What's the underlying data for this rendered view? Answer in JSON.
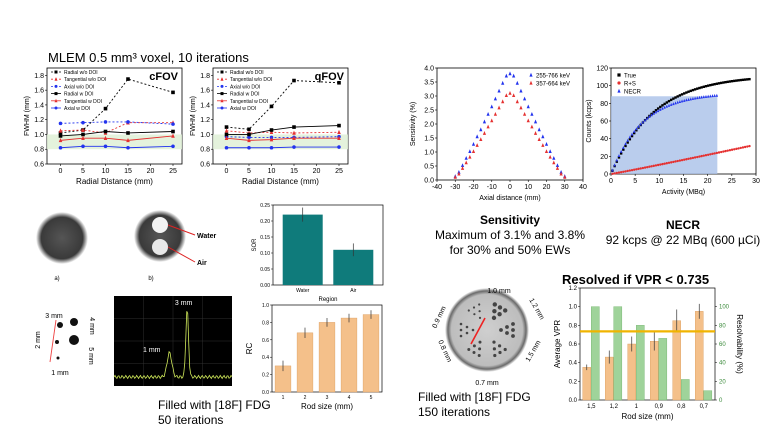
{
  "header_text": "MLEM 0.5 mm³ voxel, 10 iterations",
  "colors": {
    "black": "#000000",
    "red": "#e53030",
    "blue": "#2233ee",
    "orange": "#f4c08a",
    "teal": "#0f7b7b",
    "green": "#9fd39a",
    "gold": "#f0b400",
    "greenband": "#dff0d6",
    "bluebox": "#a9c0e8"
  },
  "fwhm_xlabel": "Radial Distance (mm)",
  "fwhm_ylabel": "FWHM (mm)",
  "fwhm_legend": [
    "Radial w/o DOI",
    "Tangential w/o DOI",
    "Axial w/o DOI",
    "Radial w DOI",
    "Tangential w DOI",
    "Axial w DOI"
  ],
  "image_labels": {
    "a": "a)",
    "b": "b)",
    "water": "Water",
    "air": "Air"
  },
  "sor_xlabel": "Region",
  "sor_ylabel": "SOR",
  "rc_xlabel": "Rod size (mm)",
  "rc_ylabel": "RC",
  "phantom_labels": {
    "l3": "3 mm",
    "l4": "4 mm",
    "l2": "2 mm",
    "l5": "5 mm",
    "l1": "1 mm"
  },
  "profile_labels": {
    "p3": "3 mm",
    "p1": "1 mm"
  },
  "rc_caption_1": "Filled with [18F] FDG",
  "rc_caption_2": "50 iterations",
  "sens_xlabel": "Axial distance (mm)",
  "sens_ylabel": "Sensitivity (%)",
  "sens_caption_title": "Sensitivity",
  "sens_caption_1": "Maximum of 3.1% and 3.8%",
  "sens_caption_2": "for 30% and 50% EWs",
  "necr_xlabel": "Activity (MBq)",
  "necr_ylabel": "Counts (kcps)",
  "necr_caption_title": "NECR",
  "necr_caption_1": "92 kcps @ 22 MBq (600 µCi)",
  "hotrod_labels": {
    "top": "1.0 mm",
    "r1": "1.2 mm",
    "r2": "1.5 mm",
    "l1": "0.9 mm",
    "l2": "0.8 mm",
    "bottom": "0.7 mm"
  },
  "hotrod_caption_1": "Filled with [18F] FDG",
  "hotrod_caption_2": "150 iterations",
  "vpr_title": "Resolved if VPR < 0.735",
  "vpr_xlabel": "Rod size (mm)",
  "vpr_ylabel": "Average VPR",
  "vpr_ylabel2": "Resolvability (%)",
  "chart_data": [
    {
      "id": "cfov",
      "type": "line",
      "title": "cFOV",
      "x": [
        0,
        5,
        10,
        15,
        25
      ],
      "xlim": [
        -3,
        27
      ],
      "ylim": [
        0.6,
        1.9
      ],
      "xticks": [
        0,
        5,
        10,
        15,
        20,
        25
      ],
      "yticks": [
        0.6,
        0.8,
        1.0,
        1.2,
        1.4,
        1.6,
        1.8
      ],
      "series": [
        {
          "name": "Radial w/o DOI",
          "values": [
            1.02,
            1.06,
            1.35,
            1.75,
            1.57
          ]
        },
        {
          "name": "Tangential w/o DOI",
          "values": [
            1.05,
            1.06,
            1.02,
            1.16,
            1.16
          ]
        },
        {
          "name": "Axial w/o DOI",
          "values": [
            1.15,
            1.16,
            1.17,
            1.17,
            1.14
          ]
        },
        {
          "name": "Radial w DOI",
          "values": [
            0.98,
            1.0,
            1.04,
            1.02,
            1.04
          ]
        },
        {
          "name": "Tangential w DOI",
          "values": [
            0.92,
            0.95,
            0.95,
            0.92,
            0.98
          ]
        },
        {
          "name": "Axial w DOI",
          "values": [
            0.82,
            0.84,
            0.84,
            0.82,
            0.84
          ]
        }
      ]
    },
    {
      "id": "qfov",
      "type": "line",
      "title": "qFOV",
      "x": [
        0,
        5,
        10,
        15,
        25
      ],
      "xlim": [
        -3,
        27
      ],
      "ylim": [
        0.6,
        1.9
      ],
      "xticks": [
        0,
        5,
        10,
        15,
        20,
        25
      ],
      "yticks": [
        0.6,
        0.8,
        1.0,
        1.2,
        1.4,
        1.6,
        1.8
      ],
      "series": [
        {
          "name": "Radial w/o DOI",
          "values": [
            1.1,
            1.07,
            1.38,
            1.73,
            1.7
          ]
        },
        {
          "name": "Tangential w/o DOI",
          "values": [
            1.05,
            1.02,
            1.03,
            1.02,
            1.03
          ]
        },
        {
          "name": "Axial w/o DOI",
          "values": [
            0.97,
            0.96,
            0.96,
            0.96,
            0.97
          ]
        },
        {
          "name": "Radial w DOI",
          "values": [
            1.0,
            1.0,
            1.06,
            1.1,
            1.12
          ]
        },
        {
          "name": "Tangential w DOI",
          "values": [
            0.95,
            0.92,
            0.93,
            0.95,
            0.95
          ]
        },
        {
          "name": "Axial w DOI",
          "values": [
            0.82,
            0.82,
            0.82,
            0.83,
            0.83
          ]
        }
      ]
    },
    {
      "id": "sor",
      "type": "bar",
      "categories": [
        "Water",
        "Air"
      ],
      "values": [
        0.22,
        0.11
      ],
      "errors": [
        0.022,
        0.02
      ],
      "ylim": [
        0,
        0.25
      ],
      "yticks": [
        0.0,
        0.05,
        0.1,
        0.15,
        0.2,
        0.25
      ]
    },
    {
      "id": "rc",
      "type": "bar",
      "categories": [
        "1",
        "2",
        "3",
        "4",
        "5"
      ],
      "values": [
        0.3,
        0.68,
        0.8,
        0.85,
        0.89
      ],
      "errors": [
        0.06,
        0.06,
        0.05,
        0.05,
        0.05
      ],
      "ylim": [
        0,
        1.0
      ],
      "yticks": [
        0.0,
        0.2,
        0.4,
        0.6,
        0.8,
        1.0
      ]
    },
    {
      "id": "sensitivity",
      "type": "scatter",
      "xlim": [
        -40,
        40
      ],
      "ylim": [
        0,
        4
      ],
      "xticks": [
        -40,
        -30,
        -20,
        -10,
        0,
        10,
        20,
        30,
        40
      ],
      "yticks": [
        0,
        0.5,
        1.0,
        1.5,
        2.0,
        2.5,
        3.0,
        3.5,
        4.0
      ],
      "series": [
        {
          "name": "255-766 keV",
          "x": [
            -30,
            -28,
            -26,
            -24,
            -22,
            -20,
            -18,
            -16,
            -14,
            -12,
            -10,
            -8,
            -6,
            -4,
            -2,
            0,
            2,
            4,
            6,
            8,
            10,
            12,
            14,
            16,
            18,
            20,
            22,
            24,
            26,
            28,
            30
          ],
          "values": [
            0.13,
            0.28,
            0.52,
            0.78,
            1.02,
            1.28,
            1.55,
            1.8,
            2.08,
            2.35,
            2.62,
            2.9,
            3.18,
            3.46,
            3.72,
            3.8,
            3.72,
            3.46,
            3.18,
            2.9,
            2.62,
            2.35,
            2.08,
            1.8,
            1.55,
            1.28,
            1.02,
            0.78,
            0.52,
            0.28,
            0.13
          ]
        },
        {
          "name": "357-664 keV",
          "x": [
            -30,
            -28,
            -26,
            -24,
            -22,
            -20,
            -18,
            -16,
            -14,
            -12,
            -10,
            -8,
            -6,
            -4,
            -2,
            0,
            2,
            4,
            6,
            8,
            10,
            12,
            14,
            16,
            18,
            20,
            22,
            24,
            26,
            28,
            30
          ],
          "values": [
            0.1,
            0.22,
            0.42,
            0.62,
            0.82,
            1.02,
            1.24,
            1.45,
            1.67,
            1.9,
            2.12,
            2.35,
            2.58,
            2.8,
            3.02,
            3.1,
            3.02,
            2.8,
            2.58,
            2.35,
            2.12,
            1.9,
            1.67,
            1.45,
            1.24,
            1.02,
            0.82,
            0.62,
            0.42,
            0.22,
            0.1
          ]
        }
      ]
    },
    {
      "id": "necr",
      "type": "scatter",
      "xlim": [
        0,
        30
      ],
      "ylim": [
        0,
        120
      ],
      "xticks": [
        0,
        5,
        10,
        15,
        20,
        25,
        30
      ],
      "yticks": [
        0,
        20,
        40,
        60,
        80,
        100,
        120
      ],
      "highlight": {
        "x": [
          0,
          22
        ],
        "y": [
          0,
          88
        ]
      },
      "series": [
        {
          "name": "True",
          "curve": {
            "type": "true",
            "ymax": 112
          }
        },
        {
          "name": "R+S",
          "curve": {
            "type": "rs",
            "ymax": 32
          }
        },
        {
          "name": "NECR",
          "curve": {
            "type": "necr",
            "ymax": 92
          }
        }
      ]
    },
    {
      "id": "vpr",
      "type": "bar",
      "categories": [
        "1,5",
        "1,2",
        "1",
        "0,9",
        "0,8",
        "0,7"
      ],
      "vpr": [
        0.35,
        0.46,
        0.6,
        0.63,
        0.85,
        0.95
      ],
      "vpr_err": [
        0.03,
        0.07,
        0.08,
        0.1,
        0.12,
        0.08
      ],
      "resolvability": [
        100,
        100,
        80,
        66,
        22,
        10
      ],
      "threshold": 0.735,
      "ylim": [
        0,
        1.2
      ],
      "ylim2": [
        0,
        120
      ],
      "yticks": [
        0.0,
        0.2,
        0.4,
        0.6,
        0.8,
        1.0,
        1.2
      ],
      "yticks2": [
        0,
        20,
        40,
        60,
        80,
        100
      ]
    }
  ]
}
